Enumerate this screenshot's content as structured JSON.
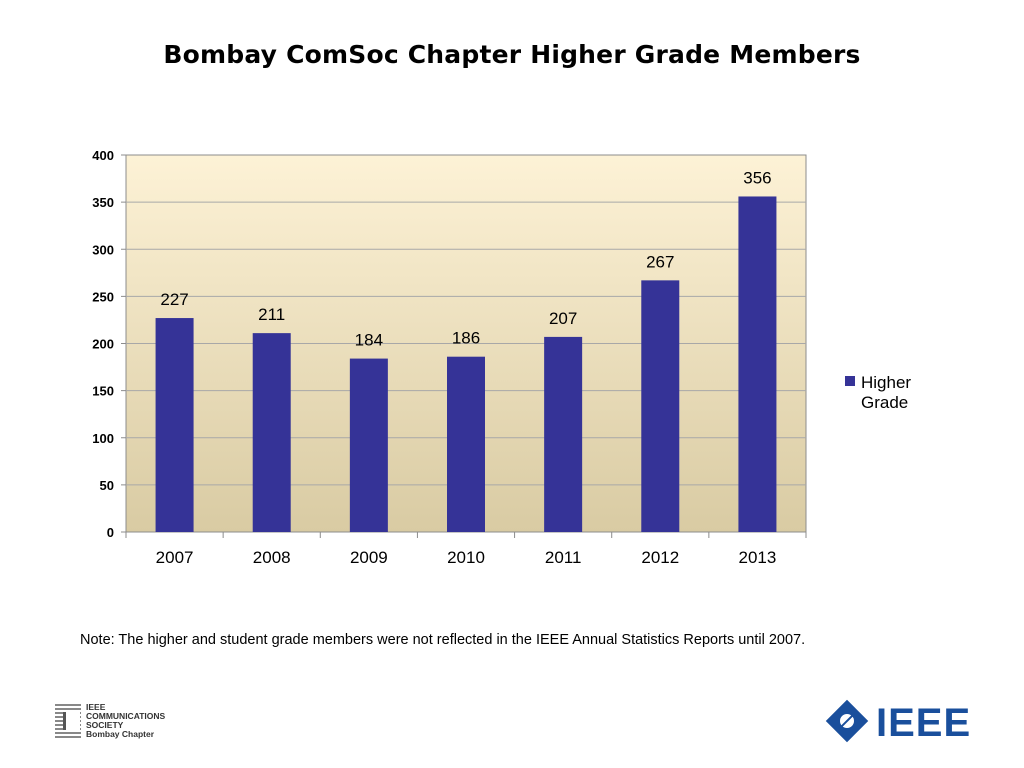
{
  "title": "Bombay ComSoc Chapter Higher Grade Members",
  "note": "Note: The higher and student grade members were not reflected in the IEEE Annual Statistics Reports until 2007.",
  "chart_data": {
    "type": "bar",
    "title": "",
    "xlabel": "",
    "ylabel": "",
    "categories": [
      "2007",
      "2008",
      "2009",
      "2010",
      "2011",
      "2012",
      "2013"
    ],
    "series": [
      {
        "name": "Higher Grade",
        "values": [
          227,
          211,
          184,
          186,
          207,
          267,
          356
        ],
        "color": "#353397"
      }
    ],
    "ylim": [
      0,
      400
    ],
    "yticks": [
      0,
      50,
      100,
      150,
      200,
      250,
      300,
      350,
      400
    ],
    "grid": true,
    "legend": "right",
    "data_labels": true,
    "plot_background": [
      "#fdf2d6",
      "#d9cba3"
    ]
  },
  "logos": {
    "comsoc": {
      "text": "IEEE\nCOMMUNICATIONS\nSOCIETY\nBombay Chapter"
    },
    "ieee": {
      "text": "IEEE"
    }
  }
}
